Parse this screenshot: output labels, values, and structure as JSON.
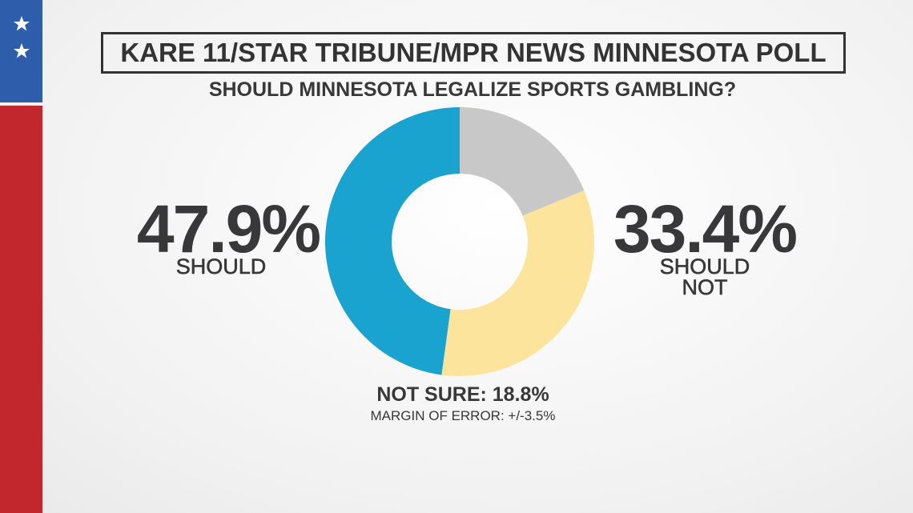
{
  "chart_data": {
    "type": "donut",
    "title": "KARE 11/STAR TRIBUNE/MPR NEWS MINNESOTA POLL",
    "subtitle": "SHOULD MINNESOTA LEGALIZE SPORTS GAMBLING?",
    "categories": [
      "NOT SURE:",
      "SHOULD NOT",
      "SHOULD"
    ],
    "values": [
      18.8,
      33.4,
      47.9
    ],
    "value_labels": [
      "18.8%",
      "33.4%",
      "47.9%"
    ],
    "colors": [
      "#c8c8c8",
      "#fce49c",
      "#1ba3d0"
    ],
    "annotation": "MARGIN OF ERROR: +/-3.5%"
  }
}
